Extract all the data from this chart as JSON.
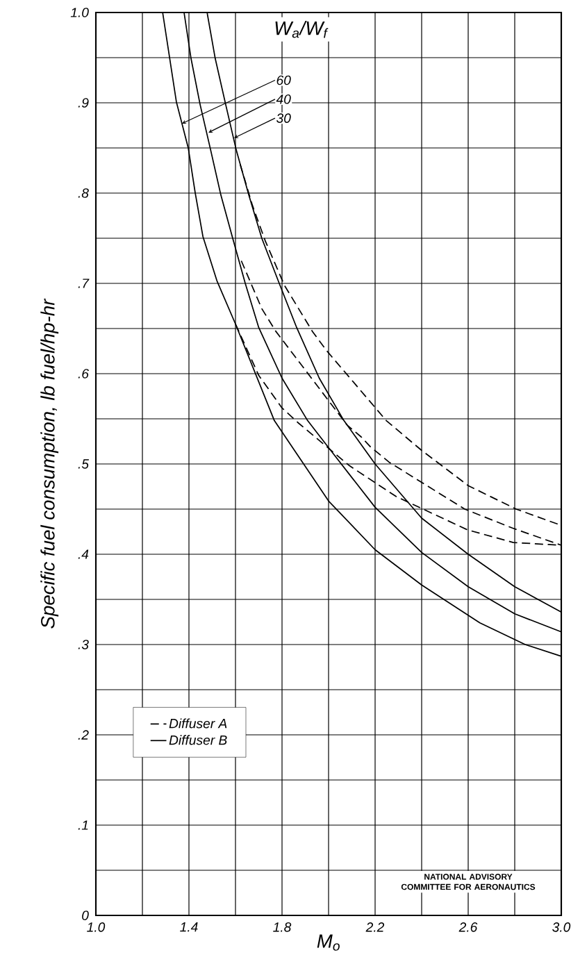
{
  "chart_data": {
    "type": "line",
    "xlabel": "M$_{o}$",
    "ylabel": "Specific fuel consumption, lb fuel/hp-hr",
    "legend_title": "W$_{a}$/W$_{f}$",
    "xlim": [
      1.0,
      3.0
    ],
    "ylim": [
      0,
      1.0
    ],
    "xticks": [
      {
        "value": 1.0,
        "label": "1.0"
      },
      {
        "value": 1.2,
        "label": null
      },
      {
        "value": 1.4,
        "label": "1.4"
      },
      {
        "value": 1.6,
        "label": null
      },
      {
        "value": 1.8,
        "label": "1.8"
      },
      {
        "value": 2.0,
        "label": null
      },
      {
        "value": 2.2,
        "label": "2.2"
      },
      {
        "value": 2.4,
        "label": null
      },
      {
        "value": 2.6,
        "label": "2.6"
      },
      {
        "value": 2.8,
        "label": null
      },
      {
        "value": 3.0,
        "label": "3.0"
      }
    ],
    "yticks": [
      {
        "value": 0,
        "label": "0"
      },
      {
        "value": 0.05,
        "label": null
      },
      {
        "value": 0.1,
        "label": ".1"
      },
      {
        "value": 0.15,
        "label": null
      },
      {
        "value": 0.2,
        "label": ".2"
      },
      {
        "value": 0.25,
        "label": null
      },
      {
        "value": 0.3,
        "label": ".3"
      },
      {
        "value": 0.35,
        "label": null
      },
      {
        "value": 0.4,
        "label": ".4"
      },
      {
        "value": 0.45,
        "label": null
      },
      {
        "value": 0.5,
        "label": ".5"
      },
      {
        "value": 0.55,
        "label": null
      },
      {
        "value": 0.6,
        "label": ".6"
      },
      {
        "value": 0.65,
        "label": null
      },
      {
        "value": 0.7,
        "label": ".7"
      },
      {
        "value": 0.75,
        "label": null
      },
      {
        "value": 0.8,
        "label": ".8"
      },
      {
        "value": 0.85,
        "label": null
      },
      {
        "value": 0.9,
        "label": ".9"
      },
      {
        "value": 0.95,
        "label": null
      },
      {
        "value": 1.0,
        "label": "1.0"
      }
    ],
    "grid": true,
    "legend": "bottom left",
    "marker": "none",
    "series": [
      {
        "name": "Diffuser A",
        "color": "#000000",
        "line_style": "dashed",
        "x": [
          1.62,
          1.672,
          1.728,
          1.81,
          1.93,
          1.99,
          2.248,
          2.4,
          2.6,
          2.806,
          3.0
        ],
        "values": [
          0.832,
          0.787,
          0.747,
          0.698,
          0.647,
          0.626,
          0.548,
          0.515,
          0.476,
          0.45,
          0.432
        ]
      },
      {
        "color": "#000000",
        "line_style": "dashed",
        "x": [
          1.625,
          1.713,
          1.773,
          2.08,
          2.14,
          2.18,
          2.26,
          2.585,
          2.79,
          3.0
        ],
        "values": [
          0.725,
          0.672,
          0.647,
          0.543,
          0.53,
          0.519,
          0.502,
          0.45,
          0.429,
          0.41
        ]
      },
      {
        "color": "#000000",
        "line_style": "dashed",
        "x": [
          1.6,
          1.7,
          1.8,
          1.872,
          2.09,
          2.29,
          2.597,
          2.794,
          3.0
        ],
        "values": [
          0.655,
          0.598,
          0.562,
          0.545,
          0.498,
          0.464,
          0.427,
          0.413,
          0.41
        ]
      },
      {
        "name": "Diffuser B",
        "color": "#000000",
        "line_style": "solid",
        "x": [
          1.287,
          1.346,
          1.397,
          1.427,
          1.46,
          1.52,
          1.6,
          1.767,
          2.0,
          2.2,
          2.4,
          2.65,
          2.845,
          3.0
        ],
        "values": [
          1.0,
          0.901,
          0.85,
          0.8,
          0.752,
          0.703,
          0.655,
          0.548,
          0.459,
          0.405,
          0.366,
          0.324,
          0.3,
          0.287
        ]
      },
      {
        "color": "#000000",
        "line_style": "solid",
        "x": [
          1.379,
          1.409,
          1.448,
          1.493,
          1.537,
          1.588,
          1.642,
          1.7,
          1.8,
          1.91,
          2.0,
          2.2,
          2.4,
          2.6,
          2.8,
          3.0
        ],
        "values": [
          1.0,
          0.949,
          0.898,
          0.848,
          0.798,
          0.75,
          0.7,
          0.651,
          0.595,
          0.548,
          0.518,
          0.452,
          0.402,
          0.364,
          0.334,
          0.314
        ]
      },
      {
        "color": "#000000",
        "line_style": "solid",
        "x": [
          1.478,
          1.513,
          1.558,
          1.603,
          1.657,
          1.713,
          1.788,
          1.863,
          1.96,
          2.066,
          2.2,
          2.4,
          2.6,
          2.8,
          3.0
        ],
        "values": [
          1.0,
          0.949,
          0.898,
          0.848,
          0.798,
          0.75,
          0.7,
          0.651,
          0.595,
          0.548,
          0.5,
          0.44,
          0.4,
          0.364,
          0.336
        ]
      }
    ],
    "annotations": [
      {
        "text": "60",
        "x": 1.37,
        "y": 0.877
      },
      {
        "text": "40",
        "x": 1.484,
        "y": 0.867
      },
      {
        "text": "30",
        "x": 1.594,
        "y": 0.861
      },
      "NATIONAL ADVISORY COMMITTEE FOR AERONAUTICS"
    ]
  }
}
